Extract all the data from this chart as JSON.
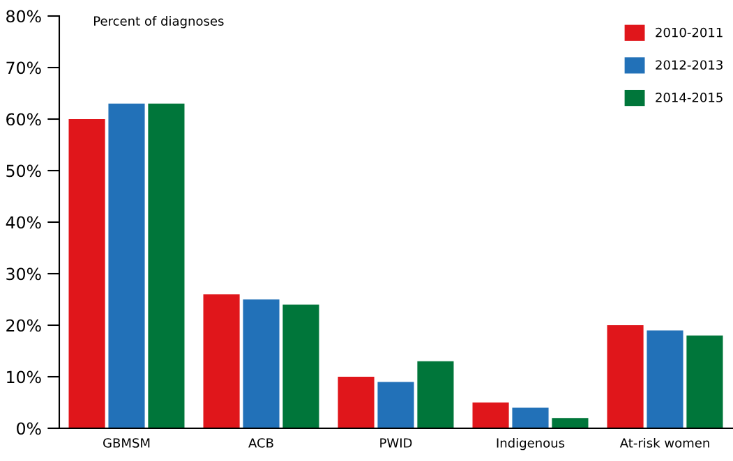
{
  "chart_data": {
    "type": "bar",
    "ylabel": "Percent of diagnoses",
    "categories": [
      "GBMSM",
      "ACB",
      "PWID",
      "Indigenous",
      "At-risk women"
    ],
    "series": [
      {
        "name": "2010-2011",
        "color": "#e0161b",
        "values": [
          60,
          26,
          10,
          5,
          20
        ]
      },
      {
        "name": "2012-2013",
        "color": "#2271b8",
        "values": [
          63,
          25,
          9,
          4,
          19
        ]
      },
      {
        "name": "2014-2015",
        "color": "#00763a",
        "values": [
          63,
          24,
          13,
          2,
          18
        ]
      }
    ],
    "ylim": [
      0,
      80
    ],
    "yticks": [
      {
        "value": 0,
        "label": "0%"
      },
      {
        "value": 10,
        "label": "10%"
      },
      {
        "value": 20,
        "label": "20%"
      },
      {
        "value": 30,
        "label": "30%"
      },
      {
        "value": 40,
        "label": "40%"
      },
      {
        "value": 50,
        "label": "50%"
      },
      {
        "value": 60,
        "label": "60%"
      },
      {
        "value": 70,
        "label": "70%"
      },
      {
        "value": 80,
        "label": "80%"
      }
    ],
    "grid": false,
    "legend": "top right"
  }
}
